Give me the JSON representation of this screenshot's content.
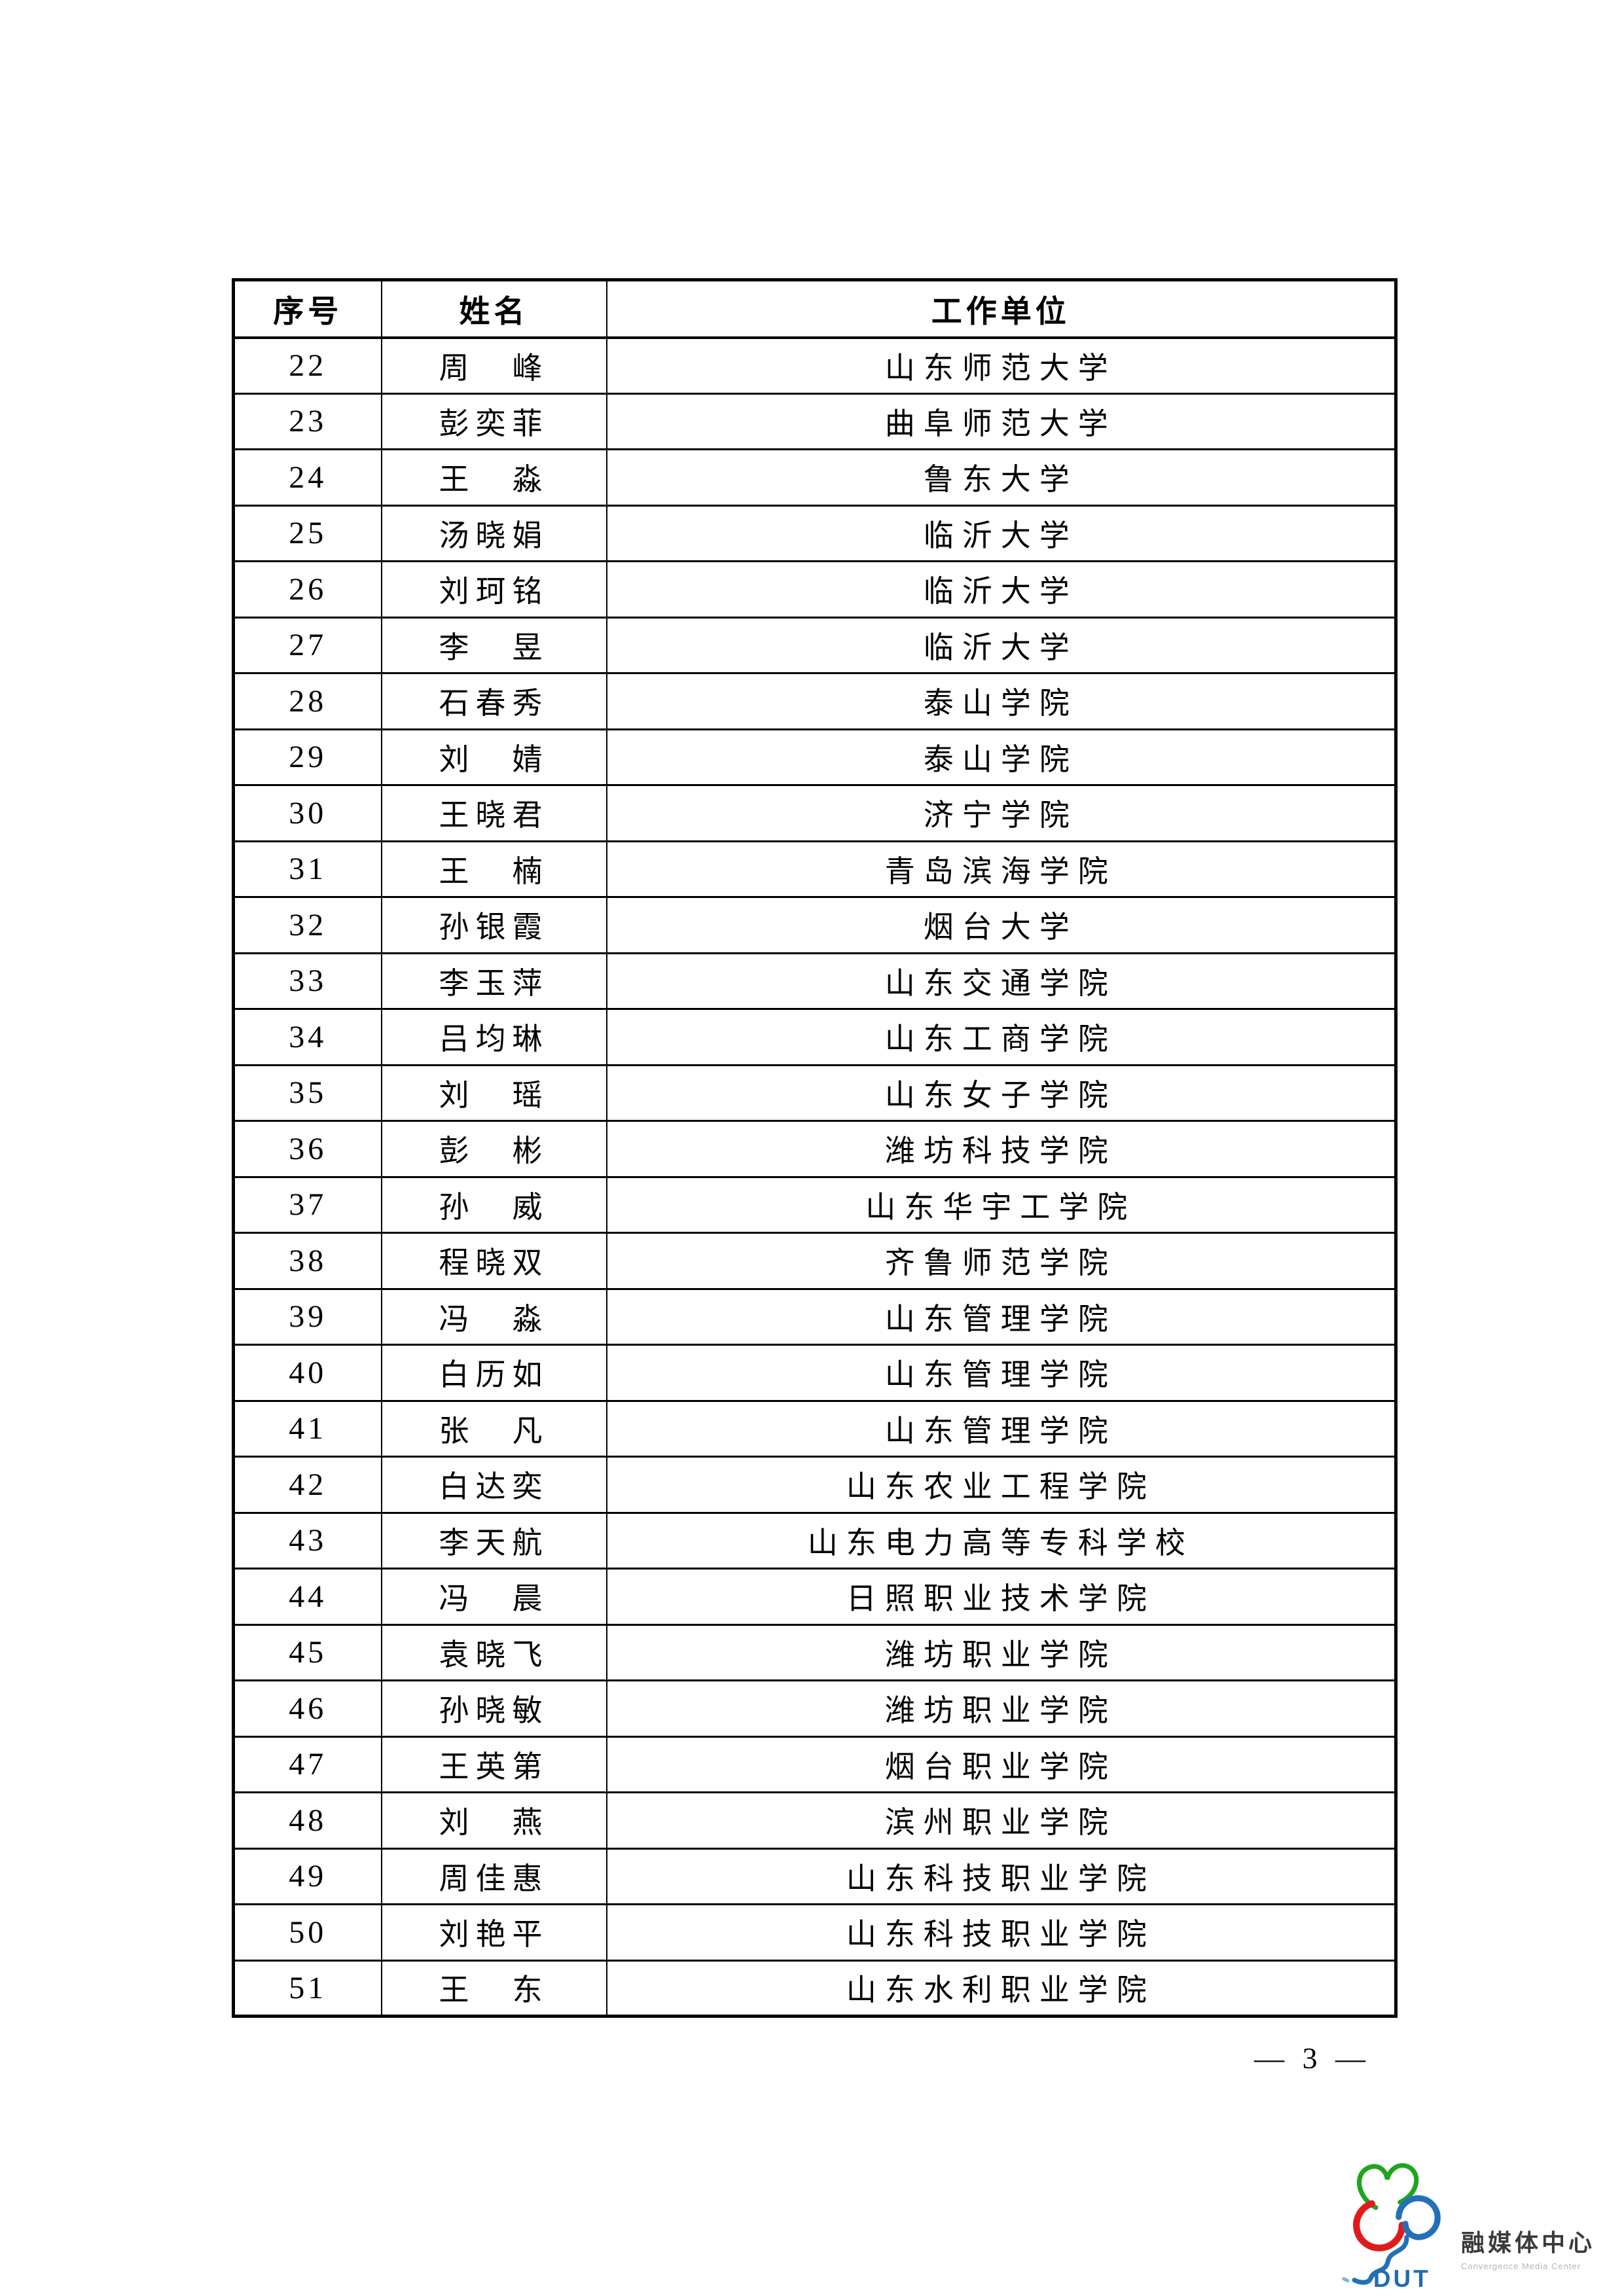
{
  "table": {
    "headers": [
      "序号",
      "姓名",
      "工作单位"
    ],
    "rows": [
      {
        "no": "22",
        "name": "周　峰",
        "unit": "山东师范大学"
      },
      {
        "no": "23",
        "name": "彭奕菲",
        "unit": "曲阜师范大学"
      },
      {
        "no": "24",
        "name": "王　淼",
        "unit": "鲁东大学"
      },
      {
        "no": "25",
        "name": "汤晓娟",
        "unit": "临沂大学"
      },
      {
        "no": "26",
        "name": "刘珂铭",
        "unit": "临沂大学"
      },
      {
        "no": "27",
        "name": "李　昱",
        "unit": "临沂大学"
      },
      {
        "no": "28",
        "name": "石春秀",
        "unit": "泰山学院"
      },
      {
        "no": "29",
        "name": "刘　婧",
        "unit": "泰山学院"
      },
      {
        "no": "30",
        "name": "王晓君",
        "unit": "济宁学院"
      },
      {
        "no": "31",
        "name": "王　楠",
        "unit": "青岛滨海学院"
      },
      {
        "no": "32",
        "name": "孙银霞",
        "unit": "烟台大学"
      },
      {
        "no": "33",
        "name": "李玉萍",
        "unit": "山东交通学院"
      },
      {
        "no": "34",
        "name": "吕均琳",
        "unit": "山东工商学院"
      },
      {
        "no": "35",
        "name": "刘　瑶",
        "unit": "山东女子学院"
      },
      {
        "no": "36",
        "name": "彭　彬",
        "unit": "潍坊科技学院"
      },
      {
        "no": "37",
        "name": "孙　威",
        "unit": "山东华宇工学院"
      },
      {
        "no": "38",
        "name": "程晓双",
        "unit": "齐鲁师范学院"
      },
      {
        "no": "39",
        "name": "冯　淼",
        "unit": "山东管理学院"
      },
      {
        "no": "40",
        "name": "白历如",
        "unit": "山东管理学院"
      },
      {
        "no": "41",
        "name": "张　凡",
        "unit": "山东管理学院"
      },
      {
        "no": "42",
        "name": "白达奕",
        "unit": "山东农业工程学院"
      },
      {
        "no": "43",
        "name": "李天航",
        "unit": "山东电力高等专科学校"
      },
      {
        "no": "44",
        "name": "冯　晨",
        "unit": "日照职业技术学院"
      },
      {
        "no": "45",
        "name": "袁晓飞",
        "unit": "潍坊职业学院"
      },
      {
        "no": "46",
        "name": "孙晓敏",
        "unit": "潍坊职业学院"
      },
      {
        "no": "47",
        "name": "王英第",
        "unit": "烟台职业学院"
      },
      {
        "no": "48",
        "name": "刘　燕",
        "unit": "滨州职业学院"
      },
      {
        "no": "49",
        "name": "周佳惠",
        "unit": "山东科技职业学院"
      },
      {
        "no": "50",
        "name": "刘艳平",
        "unit": "山东科技职业学院"
      },
      {
        "no": "51",
        "name": "王　东",
        "unit": "山东水利职业学院"
      }
    ]
  },
  "page": {
    "number_label": "— 3 —"
  },
  "footer_logo": {
    "acronym": "DUT",
    "cn": "融媒体中心",
    "en": "Convergence Media Center",
    "colors": {
      "green": "#1ea51e",
      "red": "#e01b1b",
      "blue": "#2470b8",
      "text_dark": "#3a3a3a",
      "text_light": "#b3b3b3"
    }
  }
}
